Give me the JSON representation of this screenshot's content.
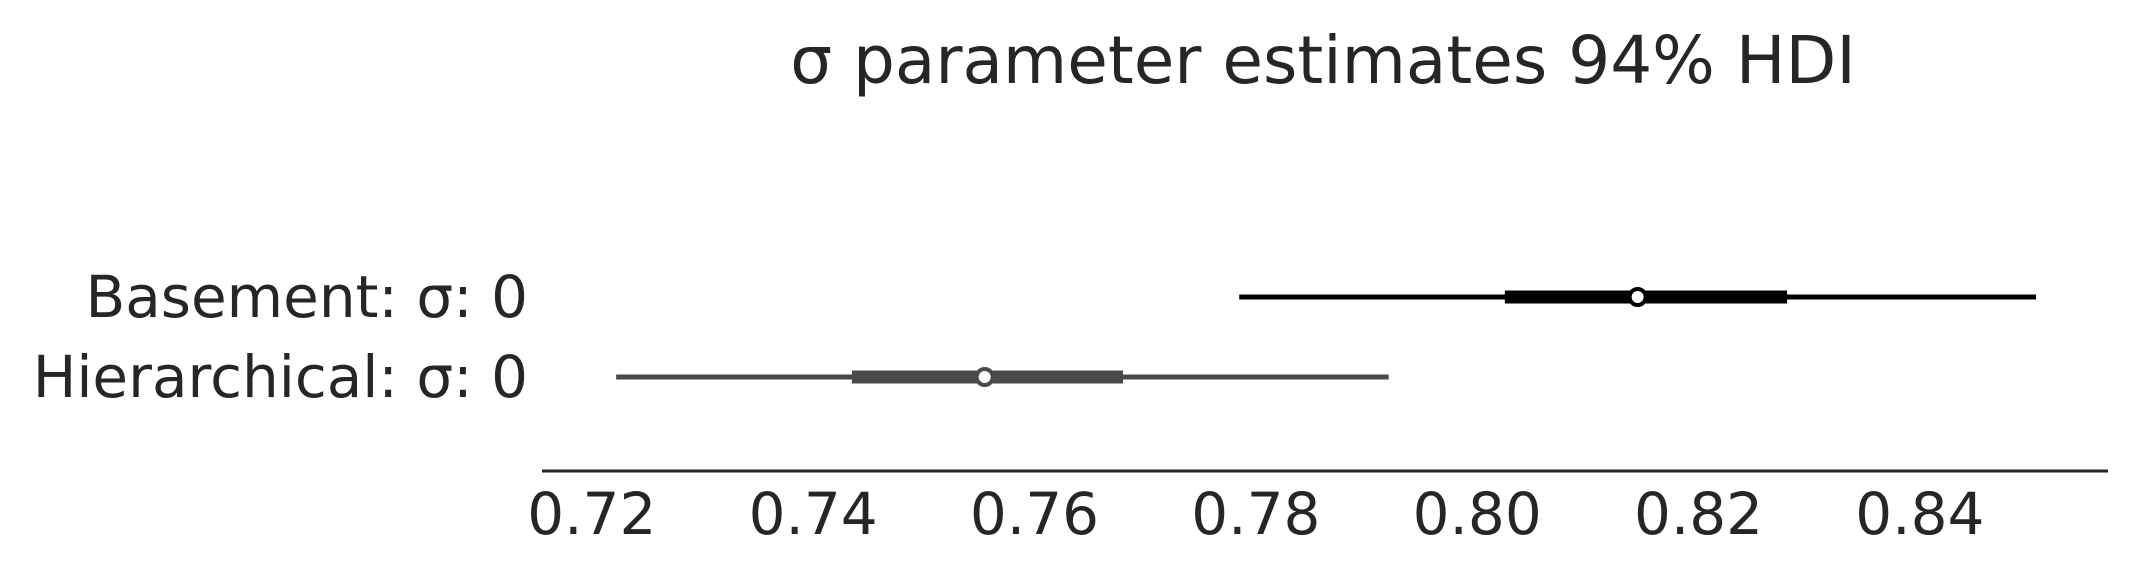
{
  "chart_data": {
    "type": "forest",
    "title": "σ parameter estimates 94% HDI",
    "xlabel": "",
    "ylabel": "",
    "xlim": [
      0.7155,
      0.857
    ],
    "xticks": [
      0.72,
      0.74,
      0.76,
      0.78,
      0.8,
      0.82,
      0.84
    ],
    "xtick_labels": [
      "0.72",
      "0.74",
      "0.76",
      "0.78",
      "0.80",
      "0.82",
      "0.84"
    ],
    "grid": false,
    "legend": "none",
    "series": [
      {
        "name": "Basement: σ: 0",
        "hdi_94": [
          0.7785,
          0.8505
        ],
        "iqr": [
          0.8025,
          0.828
        ],
        "point": 0.8145,
        "color": "#000000"
      },
      {
        "name": "Hierarchical: σ: 0",
        "hdi_94": [
          0.7222,
          0.792
        ],
        "iqr": [
          0.7435,
          0.768
        ],
        "point": 0.7555,
        "color": "#4a4a4a"
      }
    ]
  }
}
